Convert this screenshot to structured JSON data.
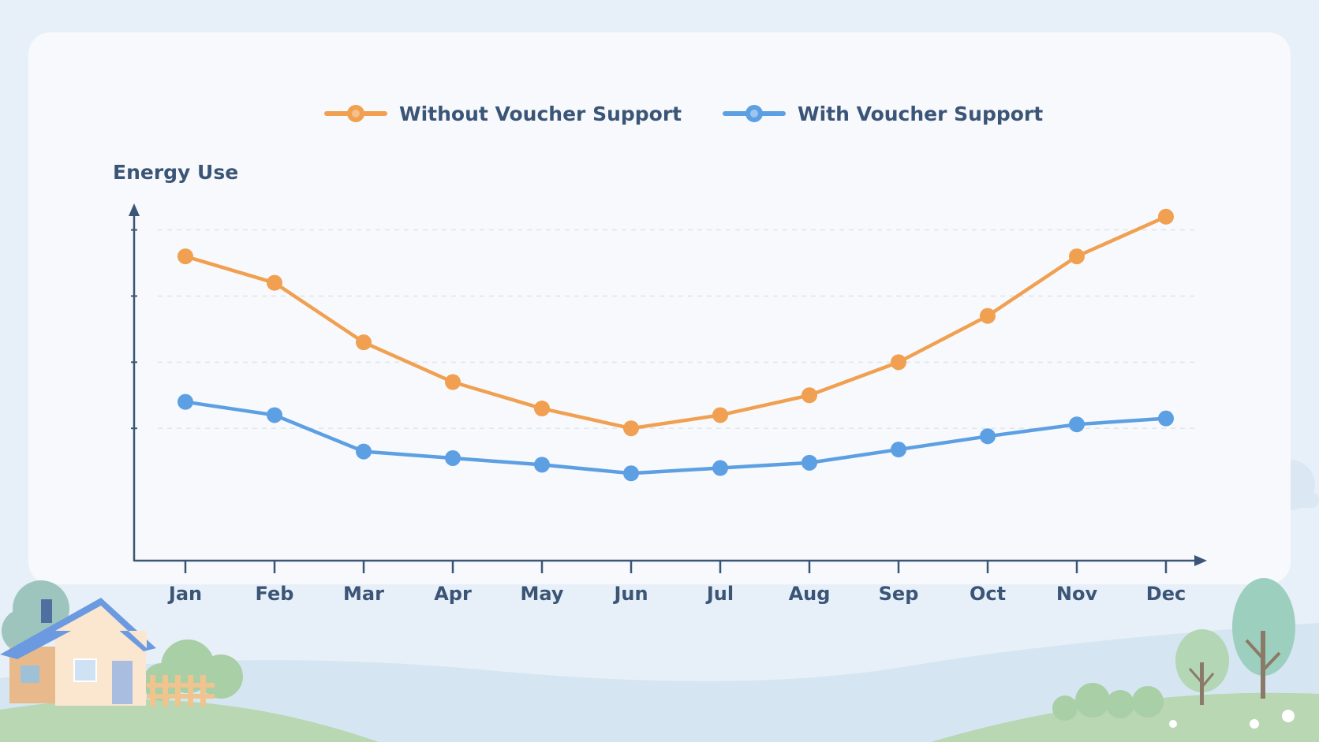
{
  "chart_data": {
    "type": "line",
    "title": "",
    "xlabel": "",
    "ylabel": "Energy Use",
    "categories": [
      "Jan",
      "Feb",
      "Mar",
      "Apr",
      "May",
      "Jun",
      "Jul",
      "Aug",
      "Sep",
      "Oct",
      "Nov",
      "Dec"
    ],
    "series": [
      {
        "name": "Without Voucher Support",
        "color": "#f0a050",
        "values": [
          76,
          72,
          63,
          57,
          53,
          50,
          52,
          55,
          60,
          67,
          76,
          82
        ]
      },
      {
        "name": "With Voucher Support",
        "color": "#5d9fe3",
        "values": [
          54,
          52,
          46.5,
          45.5,
          44.5,
          43.2,
          44,
          44.8,
          46.8,
          48.8,
          50.6,
          51.5
        ]
      }
    ],
    "ylim": [
      30,
      84
    ],
    "grid": true,
    "legend": "top-center",
    "axis_color": "#3b5577"
  }
}
